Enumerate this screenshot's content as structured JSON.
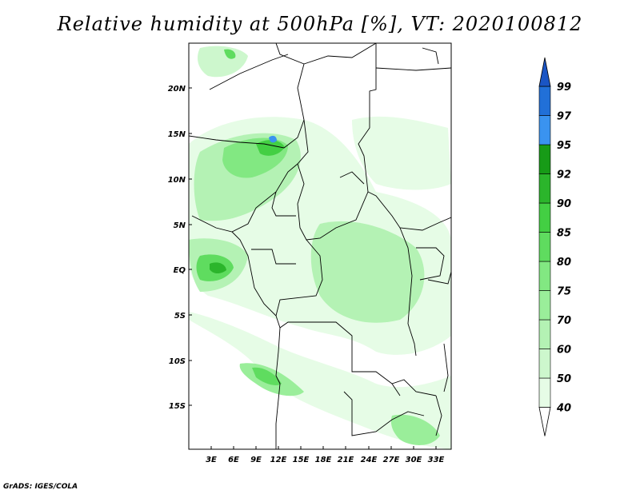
{
  "title": "Relative humidity at 500hPa [%], VT: 2020100812",
  "credit": "GrADS: IGES/COLA",
  "map": {
    "lat_labels": [
      "20N",
      "15N",
      "10N",
      "5N",
      "EQ",
      "5S",
      "10S",
      "15S"
    ],
    "lat_values": [
      20,
      15,
      10,
      5,
      0,
      -5,
      -10,
      -15
    ],
    "lon_labels": [
      "3E",
      "6E",
      "9E",
      "12E",
      "15E",
      "18E",
      "21E",
      "24E",
      "27E",
      "30E",
      "33E"
    ],
    "lon_values": [
      3,
      6,
      9,
      12,
      15,
      18,
      21,
      24,
      27,
      30,
      33
    ]
  },
  "colorbar": {
    "levels": [
      "40",
      "50",
      "60",
      "70",
      "75",
      "80",
      "85",
      "90",
      "92",
      "95",
      "97",
      "99"
    ],
    "colors": [
      "#e6fce6",
      "#cdf7cd",
      "#b4f2b4",
      "#9aee9a",
      "#82e882",
      "#5fdc5f",
      "#43cf43",
      "#2bb52b",
      "#179b17",
      "#3a93f0",
      "#2170d8",
      "#1a55c4"
    ],
    "top_arrow_color": "#1a55c4",
    "bottom_arrow_color": "#ffffff"
  }
}
